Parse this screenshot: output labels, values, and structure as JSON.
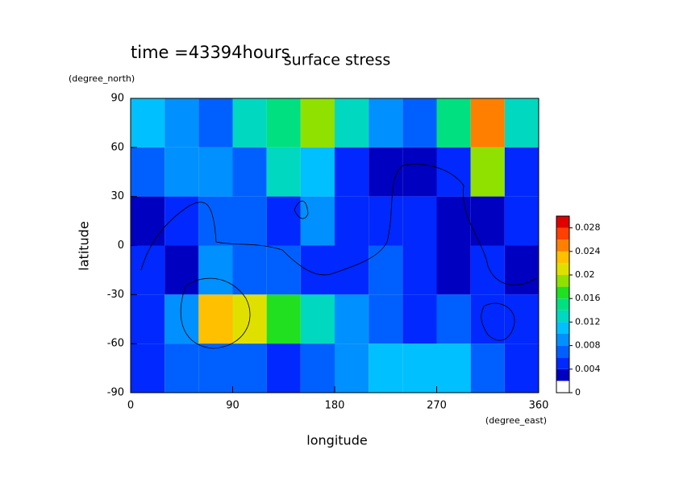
{
  "chart_data": {
    "type": "heatmap",
    "time_label": "time =43394hours",
    "title": "surface stress",
    "y_unit": "(degree_north)",
    "y_label": "latitude",
    "x_label": "longitude",
    "x_unit": "(degree_east)",
    "xlim": [
      0,
      360
    ],
    "xticks": [
      0,
      90,
      180,
      270,
      360
    ],
    "ylim": [
      -90,
      90
    ],
    "yticks": [
      -90,
      -60,
      -30,
      0,
      30,
      60,
      90
    ],
    "x": [
      15,
      45,
      75,
      105,
      135,
      165,
      195,
      225,
      255,
      285,
      315,
      345
    ],
    "y": [
      75,
      45,
      15,
      -15,
      -45,
      -75
    ],
    "z": [
      [
        0.01,
        0.008,
        0.006,
        0.012,
        0.014,
        0.018,
        0.012,
        0.008,
        0.006,
        0.014,
        0.024,
        0.012
      ],
      [
        0.006,
        0.008,
        0.008,
        0.006,
        0.012,
        0.01,
        0.004,
        0.002,
        0.002,
        0.004,
        0.018,
        0.004
      ],
      [
        0.002,
        0.004,
        0.006,
        0.006,
        0.004,
        0.008,
        0.004,
        0.004,
        0.004,
        0.003,
        0.002,
        0.004
      ],
      [
        0.004,
        0.003,
        0.008,
        0.006,
        0.006,
        0.004,
        0.004,
        0.006,
        0.004,
        0.002,
        0.004,
        0.003
      ],
      [
        0.004,
        0.008,
        0.022,
        0.02,
        0.016,
        0.012,
        0.008,
        0.006,
        0.004,
        0.006,
        0.004,
        0.004
      ],
      [
        0.004,
        0.006,
        0.006,
        0.006,
        0.004,
        0.006,
        0.008,
        0.01,
        0.01,
        0.01,
        0.006,
        0.004
      ]
    ],
    "clim": [
      0,
      0.03
    ],
    "cticks": [
      0,
      0.004,
      0.008,
      0.012,
      0.016,
      0.02,
      0.024,
      0.028
    ],
    "colors": [
      "#ffffff",
      "#0000c0",
      "#0028ff",
      "#0060ff",
      "#0090ff",
      "#00c0ff",
      "#00d8c0",
      "#00e080",
      "#20e020",
      "#90e000",
      "#e0e000",
      "#ffc000",
      "#ff8000",
      "#ff4000",
      "#e00000"
    ]
  }
}
